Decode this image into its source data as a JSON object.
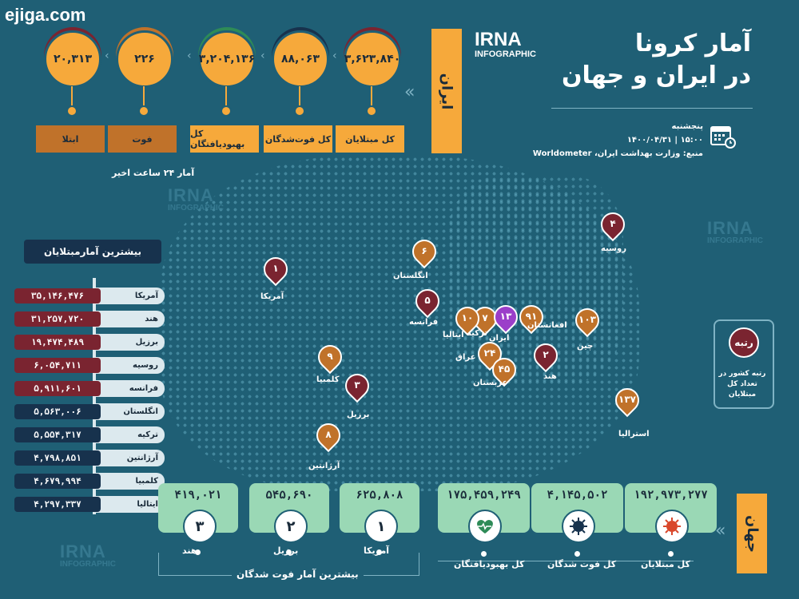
{
  "site_watermark": "ejiga.com",
  "header": {
    "title_line1": "آمار کرونا",
    "title_line2": "در ایران و جهان",
    "brand_big": "IRNA",
    "brand_small": "INFOGRAPHIC",
    "day": "پنجشنبه",
    "date_time": "۱۵:۰۰ | ۱۴۰۰/۰۴/۳۱",
    "source": "منبع: وزارت بهداشت ایران، Worldometer"
  },
  "iran": {
    "label": "ایران",
    "recent_note": "آمار ۲۴ ساعت اخیر",
    "stats": [
      {
        "value": "۳,۶۲۳,۸۴۰",
        "label": "کل مبتلایان"
      },
      {
        "value": "۸۸,۰۶۳",
        "label": "کل فوت‌شدگان"
      },
      {
        "value": "۳,۲۰۴,۱۳۶",
        "label": "کل بهبودیافتگان"
      },
      {
        "value": "۲۲۶",
        "label": "فوت"
      },
      {
        "value": "۲۰,۳۱۳",
        "label": "ابتلا"
      }
    ]
  },
  "most_infected": {
    "title": "بیشترین آمارمبتلایان",
    "rows": [
      {
        "country": "آمریکا",
        "value": "۳۵,۱۴۶,۴۷۶"
      },
      {
        "country": "هند",
        "value": "۳۱,۲۵۷,۷۲۰"
      },
      {
        "country": "برزیل",
        "value": "۱۹,۴۷۴,۴۸۹"
      },
      {
        "country": "روسیه",
        "value": "۶,۰۵۴,۷۱۱"
      },
      {
        "country": "فرانسه",
        "value": "۵,۹۱۱,۶۰۱"
      },
      {
        "country": "انگلستان",
        "value": "۵,۵۶۳,۰۰۶"
      },
      {
        "country": "ترکیه",
        "value": "۵,۵۵۴,۳۱۷"
      },
      {
        "country": "آرژانتین",
        "value": "۴,۷۹۸,۸۵۱"
      },
      {
        "country": "کلمبیا",
        "value": "۴,۶۷۹,۹۹۴"
      },
      {
        "country": "ایتالیا",
        "value": "۴,۲۹۷,۳۳۷"
      }
    ]
  },
  "map_pins": [
    {
      "rank": "۱",
      "country": "آمریکا"
    },
    {
      "rank": "۲",
      "country": "هند"
    },
    {
      "rank": "۳",
      "country": "برزیل"
    },
    {
      "rank": "۴",
      "country": "روسیه"
    },
    {
      "rank": "۵",
      "country": "فرانسه"
    },
    {
      "rank": "۶",
      "country": "انگلستان"
    },
    {
      "rank": "۷",
      "country": "ترکیه"
    },
    {
      "rank": "۸",
      "country": "آرژانتین"
    },
    {
      "rank": "۹",
      "country": "کلمبیا"
    },
    {
      "rank": "۱۰",
      "country": "ایتالیا"
    },
    {
      "rank": "۱۳",
      "country": "ایران"
    },
    {
      "rank": "۲۴",
      "country": "عراق"
    },
    {
      "rank": "۴۵",
      "country": "عربستان"
    },
    {
      "rank": "۹۱",
      "country": "افغانستان"
    },
    {
      "rank": "۱۰۳",
      "country": "چین"
    },
    {
      "rank": "۱۳۷",
      "country": "استرالیا"
    }
  ],
  "rank_legend": {
    "title": "رتبه",
    "desc": "رتبه کشور در تعداد کل مبتلایان"
  },
  "world": {
    "label": "جهان",
    "stats": [
      {
        "value": "۱۹۲,۹۷۳,۲۷۷",
        "label": "کل مبتلایان",
        "icon": "virus-icon"
      },
      {
        "value": "۴,۱۴۵,۵۰۲",
        "label": "کل فوت شدگان",
        "icon": "virus-dark-icon"
      },
      {
        "value": "۱۷۵,۴۵۹,۲۴۹",
        "label": "کل بهبودیافتگان",
        "icon": "heartbeat-icon"
      }
    ],
    "deaths_title": "بیشترین آمار فوت شدگان",
    "deaths": [
      {
        "rank": "۱",
        "country": "آمریکا",
        "value": "۶۲۵,۸۰۸"
      },
      {
        "rank": "۲",
        "country": "برزیل",
        "value": "۵۴۵,۶۹۰"
      },
      {
        "rank": "۳",
        "country": "هند",
        "value": "۴۱۹,۰۲۱"
      }
    ]
  },
  "colors": {
    "background": "#1f5f75",
    "orange": "#f6a93b",
    "brown": "#c0722a",
    "maroon": "#7a2430",
    "green": "#9ad8b5",
    "navy": "#17324d",
    "purple": "#9b3ec9"
  }
}
